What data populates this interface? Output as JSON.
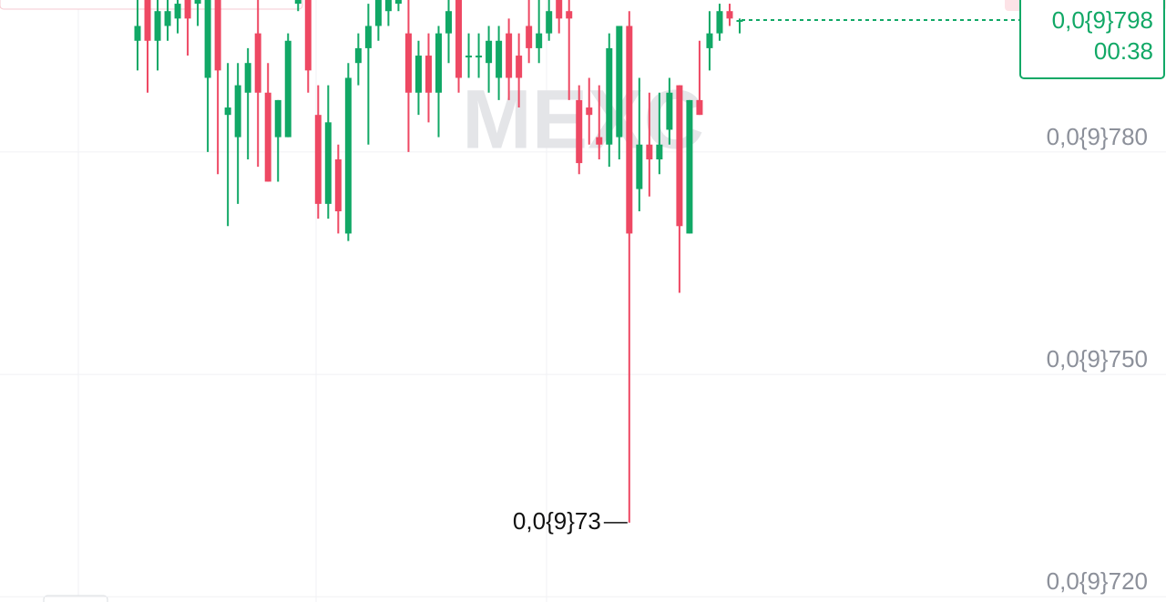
{
  "chart_data": {
    "type": "candlestick",
    "watermark": "MEXC",
    "up_color": "#11a866",
    "down_color": "#ee4863",
    "open": [
      795,
      801,
      795,
      797,
      798,
      801,
      800,
      790,
      801,
      785,
      782,
      788,
      796,
      788,
      782,
      782,
      800,
      801,
      785,
      773,
      779,
      769,
      792,
      794,
      797,
      799,
      800,
      796,
      788,
      793,
      788,
      796,
      801,
      792.8,
      792.8,
      792,
      790,
      796,
      793,
      797,
      794,
      796,
      801,
      799,
      787,
      786,
      782,
      781,
      782,
      797,
      775,
      781,
      779,
      783,
      789,
      769,
      787,
      794,
      796,
      799,
      797.8
    ],
    "high": [
      802,
      802,
      801,
      801,
      802,
      802,
      802,
      802,
      802,
      792,
      792,
      794,
      801,
      792,
      787,
      796,
      802,
      802,
      789,
      789,
      781,
      792,
      796,
      800,
      802,
      802,
      802,
      802,
      795,
      796,
      797,
      802,
      802,
      796,
      796,
      797,
      797,
      798,
      796,
      802,
      802,
      802,
      802,
      801,
      789,
      790,
      789,
      796,
      797,
      799,
      790,
      788,
      788,
      790,
      789,
      787,
      795,
      799,
      800,
      800,
      798
    ],
    "low": [
      791,
      788,
      791,
      795,
      796,
      793,
      797,
      780,
      777,
      770,
      773,
      779,
      778,
      776,
      776,
      782,
      799,
      788,
      771,
      771,
      769,
      768,
      789,
      781,
      795,
      797,
      799,
      780,
      785,
      784,
      782,
      792,
      788,
      790,
      790,
      788,
      787,
      787,
      786,
      792,
      792,
      795,
      796,
      787,
      777,
      781,
      779,
      778,
      779,
      730,
      772,
      774,
      777,
      781,
      761,
      769,
      785,
      791,
      795,
      797,
      796
    ],
    "close": [
      797,
      795,
      799,
      799,
      800,
      798,
      801,
      801,
      791,
      786,
      789,
      792,
      788,
      776,
      787,
      795,
      801,
      791,
      773,
      784,
      772,
      790,
      794,
      797,
      801,
      801,
      801,
      788,
      793,
      788,
      796,
      799,
      790,
      793,
      793,
      795,
      795,
      790,
      790,
      794,
      796,
      799,
      798,
      798,
      778.5,
      785,
      781,
      794,
      797,
      769,
      781,
      779,
      781,
      788,
      770,
      787,
      785,
      796,
      799,
      798,
      797.8
    ],
    "ylim": [
      719.3,
      800.5
    ],
    "yticks": [
      {
        "value": 780,
        "label": "0,0{9}780"
      },
      {
        "value": 750,
        "label": "0,0{9}750"
      },
      {
        "value": 720,
        "label": "0,0{9}720"
      }
    ],
    "grid": true,
    "last_price": {
      "value": 797.8,
      "label": "0,0{9}798",
      "countdown": "00:38"
    },
    "low_marker": {
      "value": 730,
      "label": "0,0{9}73"
    }
  }
}
